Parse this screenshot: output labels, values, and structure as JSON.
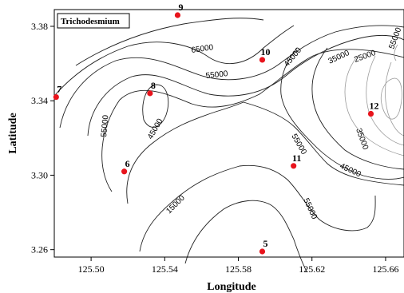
{
  "chart_data": {
    "type": "scatter",
    "title": "",
    "xlabel": "Longitude",
    "ylabel": "Latitude",
    "xlim": [
      125.48,
      125.67
    ],
    "ylim": [
      3.256,
      3.389
    ],
    "x_ticks": [
      "125.50",
      "125.54",
      "125.58",
      "125.62",
      "125.66"
    ],
    "y_ticks": [
      "3.26",
      "3.30",
      "3.34",
      "3.38"
    ],
    "legend_label": "Trichodesmium",
    "legend_placement": "top-left",
    "grid": false,
    "stations": [
      {
        "name": "9",
        "x": 125.547,
        "y": 3.386
      },
      {
        "name": "10",
        "x": 125.593,
        "y": 3.362
      },
      {
        "name": "7",
        "x": 125.481,
        "y": 3.342
      },
      {
        "name": "8",
        "x": 125.532,
        "y": 3.344
      },
      {
        "name": "12",
        "x": 125.652,
        "y": 3.333
      },
      {
        "name": "6",
        "x": 125.518,
        "y": 3.302
      },
      {
        "name": "11",
        "x": 125.61,
        "y": 3.305
      },
      {
        "name": "5",
        "x": 125.593,
        "y": 3.259
      }
    ],
    "contour_labels": [
      "65000",
      "55000",
      "45000",
      "35000",
      "25000",
      "55000",
      "45000",
      "55000",
      "45000",
      "35000",
      "15000",
      "55000",
      "55000"
    ],
    "marker_color": "#e8141c"
  }
}
